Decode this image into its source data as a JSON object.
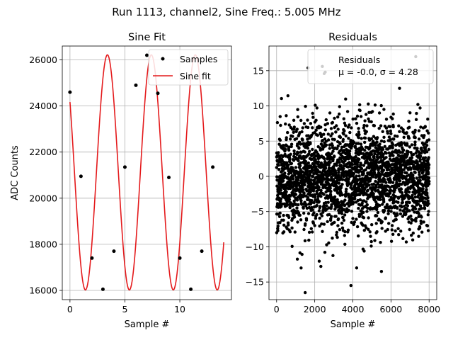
{
  "figure": {
    "suptitle": "Run 1113, channel2, Sine Freq.: 5.005 MHz"
  },
  "colors": {
    "fit_line": "#e41a1c",
    "markers": "#000000",
    "grid": "#b0b0b0",
    "background": "#ffffff"
  },
  "chart_data": [
    {
      "type": "line",
      "title": "Sine Fit",
      "xlabel": "Sample #",
      "ylabel": "ADC Counts",
      "xlim": [
        -0.7,
        14.7
      ],
      "ylim": [
        15600,
        26600
      ],
      "xticks": [
        0,
        5,
        10
      ],
      "xtick_labels": [
        "0",
        "5",
        "10"
      ],
      "yticks": [
        16000,
        18000,
        20000,
        22000,
        24000,
        26000
      ],
      "ytick_labels": [
        "16000",
        "18000",
        "20000",
        "22000",
        "24000",
        "26000"
      ],
      "grid": true,
      "legend": {
        "location": "upper right",
        "entries": [
          "Samples",
          "Sine fit"
        ]
      },
      "series": [
        {
          "name": "Samples",
          "kind": "scatter",
          "x": [
            0,
            1,
            2,
            3,
            4,
            5,
            6,
            7,
            8,
            9,
            10,
            11,
            12,
            13
          ],
          "y": [
            24600,
            20950,
            17400,
            16050,
            17700,
            21350,
            24900,
            26200,
            24550,
            20900,
            17400,
            16050,
            17700,
            21350
          ]
        },
        {
          "name": "Sine fit",
          "kind": "line",
          "model": "offset + amplitude * sin(2*pi*frequency*x + phase)",
          "offset": 21120,
          "amplitude": 5100,
          "frequency": 0.25005,
          "phase": 2.5,
          "x_range": [
            0,
            14
          ]
        }
      ]
    },
    {
      "type": "scatter",
      "title": "Residuals",
      "xlabel": "Sample #",
      "ylabel": "",
      "xlim": [
        -400,
        8400
      ],
      "ylim": [
        -17.5,
        18.5
      ],
      "xticks": [
        0,
        2000,
        4000,
        6000,
        8000
      ],
      "xtick_labels": [
        "0",
        "2000",
        "4000",
        "6000",
        "8000"
      ],
      "yticks": [
        -15,
        -10,
        -5,
        0,
        5,
        10,
        15
      ],
      "ytick_labels": [
        "−15",
        "−10",
        "−5",
        "0",
        "5",
        "10",
        "15"
      ],
      "grid": true,
      "legend": {
        "location": "upper right",
        "entries": [
          "Residuals"
        ],
        "stats_text": "μ = -0.0, σ = 4.28"
      },
      "series": [
        {
          "name": "Residuals",
          "mean": 0.0,
          "sigma": 4.28,
          "n_points": 8000,
          "x_range": [
            0,
            8000
          ],
          "outliers": [
            {
              "x": 1500,
              "y": -16.5
            },
            {
              "x": 3900,
              "y": -15.5
            },
            {
              "x": 7300,
              "y": 17.0
            },
            {
              "x": 1650,
              "y": 15.4
            },
            {
              "x": 2400,
              "y": 15.6
            },
            {
              "x": 2550,
              "y": 14.8
            },
            {
              "x": 4200,
              "y": -13.0
            },
            {
              "x": 5500,
              "y": -13.5
            },
            {
              "x": 6450,
              "y": 12.5
            }
          ]
        }
      ]
    }
  ]
}
